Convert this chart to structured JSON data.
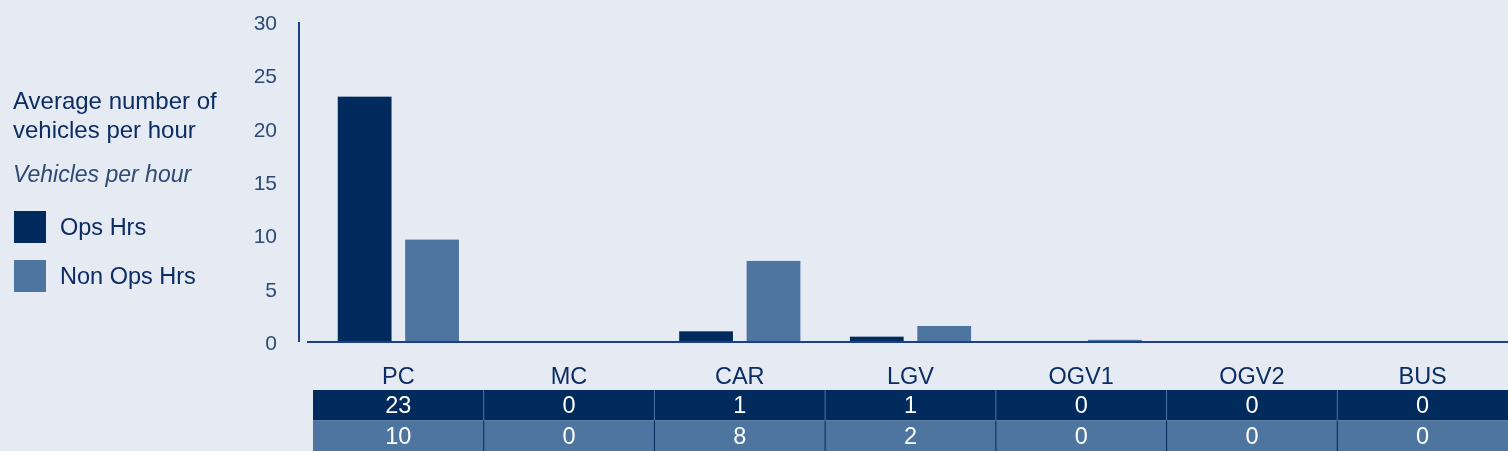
{
  "chart_data": {
    "type": "bar",
    "title": "Average number of vehicles per hour",
    "ylabel": "Vehicles per hour",
    "categories": [
      "PC",
      "MC",
      "CAR",
      "LGV",
      "OGV1",
      "OGV2",
      "BUS"
    ],
    "series": [
      {
        "name": "Ops Hrs",
        "color": "#002b5c",
        "values": [
          23,
          0,
          1,
          0.5,
          0,
          0,
          0
        ],
        "value_labels": [
          "23",
          "0",
          "1",
          "1",
          "0",
          "0",
          "0"
        ]
      },
      {
        "name": "Non Ops Hrs",
        "color": "#4d75a0",
        "values": [
          9.6,
          0,
          7.6,
          1.5,
          0.2,
          0,
          0
        ],
        "value_labels": [
          "10",
          "0",
          "8",
          "2",
          "0",
          "0",
          "0"
        ]
      }
    ],
    "ylim": [
      0,
      30
    ],
    "yticks": [
      0,
      5,
      10,
      15,
      20,
      25,
      30
    ],
    "legend": "left"
  }
}
